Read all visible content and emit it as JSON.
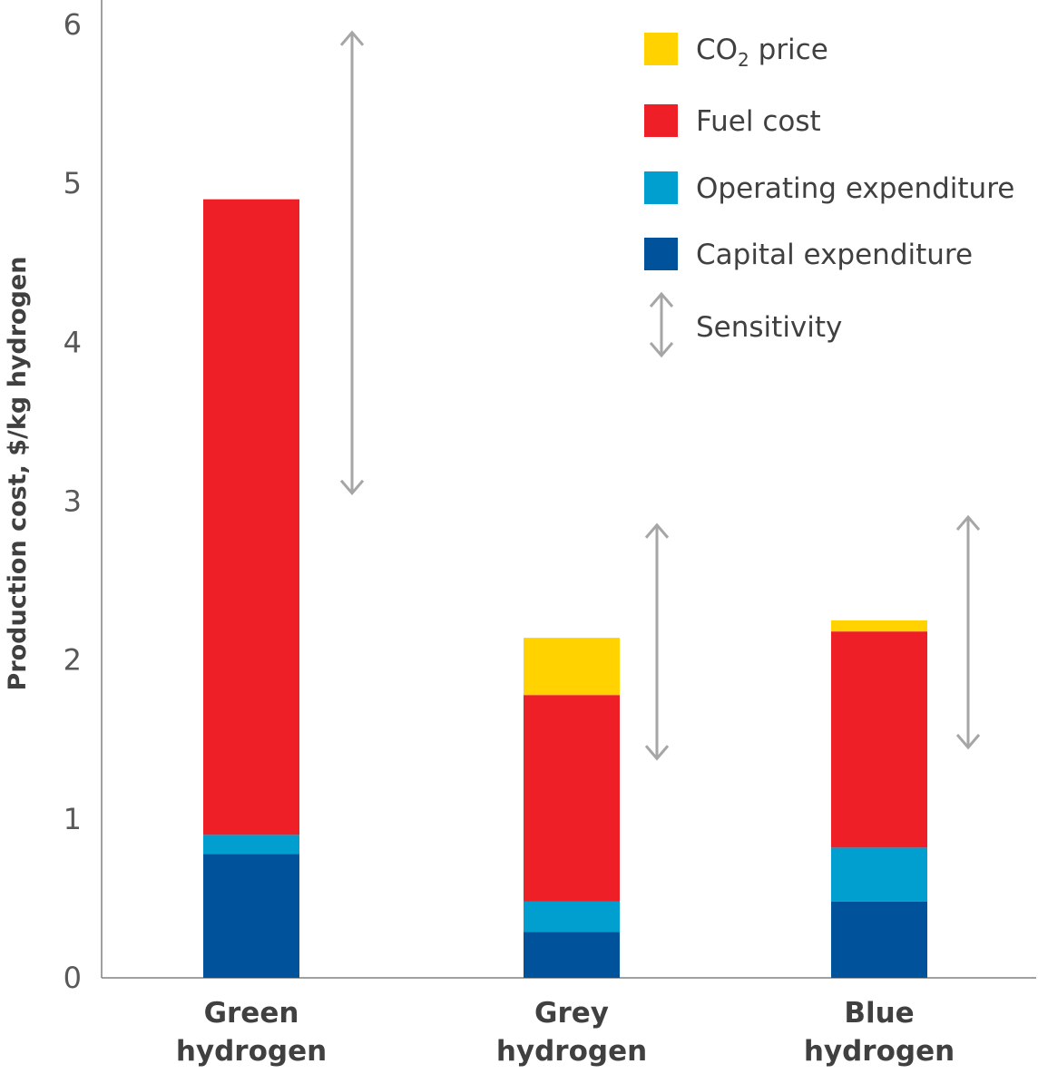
{
  "chart_data": {
    "type": "bar",
    "stacked": true,
    "categories": [
      {
        "line1": "Green",
        "line2": "hydrogen"
      },
      {
        "line1": "Grey",
        "line2": "hydrogen"
      },
      {
        "line1": "Blue",
        "line2": "hydrogen"
      }
    ],
    "ylabel": "Production cost, $/kg hydrogen",
    "ylim": [
      0,
      6
    ],
    "yticks": [
      "0",
      "1",
      "2",
      "3",
      "4",
      "5",
      "6"
    ],
    "series": [
      {
        "name": "Capital expenditure",
        "color": "#00529B",
        "values": [
          0.78,
          0.29,
          0.48
        ]
      },
      {
        "name": "Operating expenditure",
        "color": "#009FD0",
        "values": [
          0.12,
          0.19,
          0.34
        ]
      },
      {
        "name": "Fuel cost",
        "color": "#EE1F26",
        "values": [
          4.0,
          1.3,
          1.36
        ]
      },
      {
        "name": "CO2 price",
        "color": "#FFD200",
        "values": [
          0.0,
          0.36,
          0.07
        ]
      }
    ],
    "sensitivity": [
      {
        "low": 3.05,
        "high": 5.95
      },
      {
        "low": 1.38,
        "high": 2.85
      },
      {
        "low": 1.45,
        "high": 2.9
      }
    ],
    "sensitivity_color": "#A6A6A6",
    "legend": {
      "placement": "top-right",
      "items": [
        {
          "main": "CO",
          "sub": "2",
          "rest": " price",
          "color": "#FFD200"
        },
        {
          "main": "Fuel cost",
          "color": "#EE1F26"
        },
        {
          "main": "Operating expenditure",
          "color": "#009FD0"
        },
        {
          "main": "Capital expenditure",
          "color": "#00529B"
        },
        {
          "main": "Sensitivity",
          "icon": "double-arrow-icon"
        }
      ]
    }
  }
}
